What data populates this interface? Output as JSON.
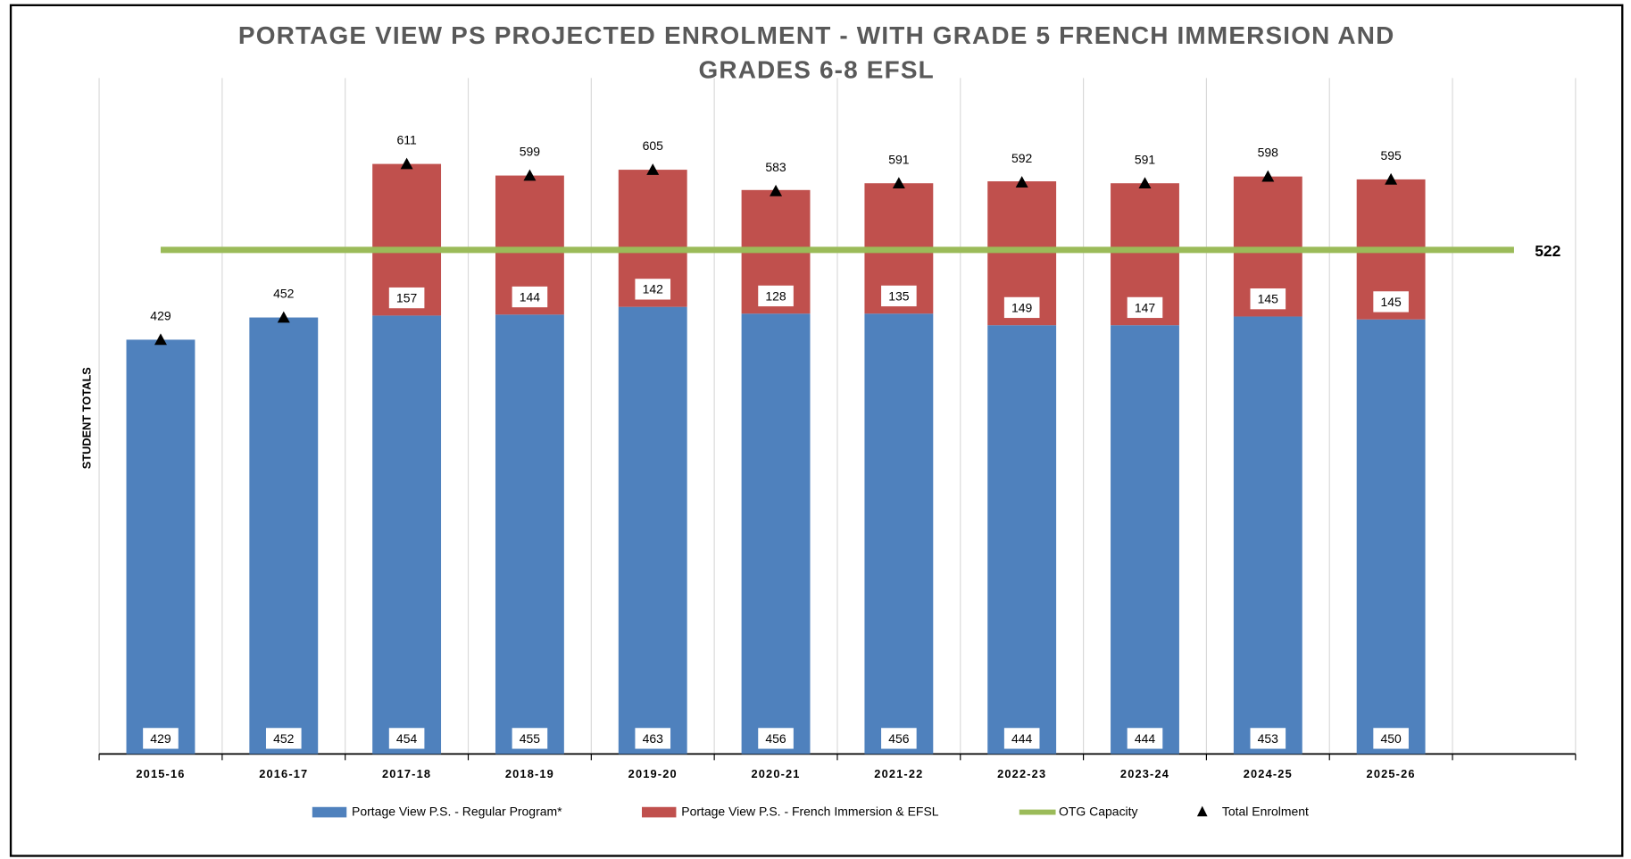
{
  "chart_data": {
    "type": "bar",
    "stacked": true,
    "title": "PORTAGE VIEW PS PROJECTED ENROLMENT - WITH GRADE 5 FRENCH IMMERSION AND GRADES 6-8 EFSL",
    "y_label": "STUDENT TOTALS",
    "categories": [
      "2015-16",
      "2016-17",
      "2017-18",
      "2018-19",
      "2019-20",
      "2020-21",
      "2021-22",
      "2022-23",
      "2023-24",
      "2024-25",
      "2025-26",
      null
    ],
    "ylim": [
      0,
      700
    ],
    "grid": true,
    "legend": "bottom",
    "series": [
      {
        "name": "Portage View P.S. - Regular Program*",
        "color": "#4f81bd",
        "kind": "bar",
        "values": [
          429,
          452,
          454,
          455,
          463,
          456,
          456,
          444,
          444,
          453,
          450,
          null
        ]
      },
      {
        "name": "Portage View P.S. - French Immersion & EFSL",
        "color": "#c0504d",
        "kind": "bar",
        "values": [
          null,
          null,
          157,
          144,
          142,
          128,
          135,
          149,
          147,
          145,
          145,
          null
        ]
      },
      {
        "name": "OTG Capacity",
        "color": "#9bbb59",
        "kind": "line",
        "values": [
          522,
          522,
          522,
          522,
          522,
          522,
          522,
          522,
          522,
          522,
          522,
          522
        ]
      },
      {
        "name": "Total Enrolment",
        "color": "#000000",
        "kind": "marker",
        "values": [
          429,
          452,
          611,
          599,
          605,
          583,
          591,
          592,
          591,
          598,
          595,
          null
        ]
      }
    ]
  }
}
